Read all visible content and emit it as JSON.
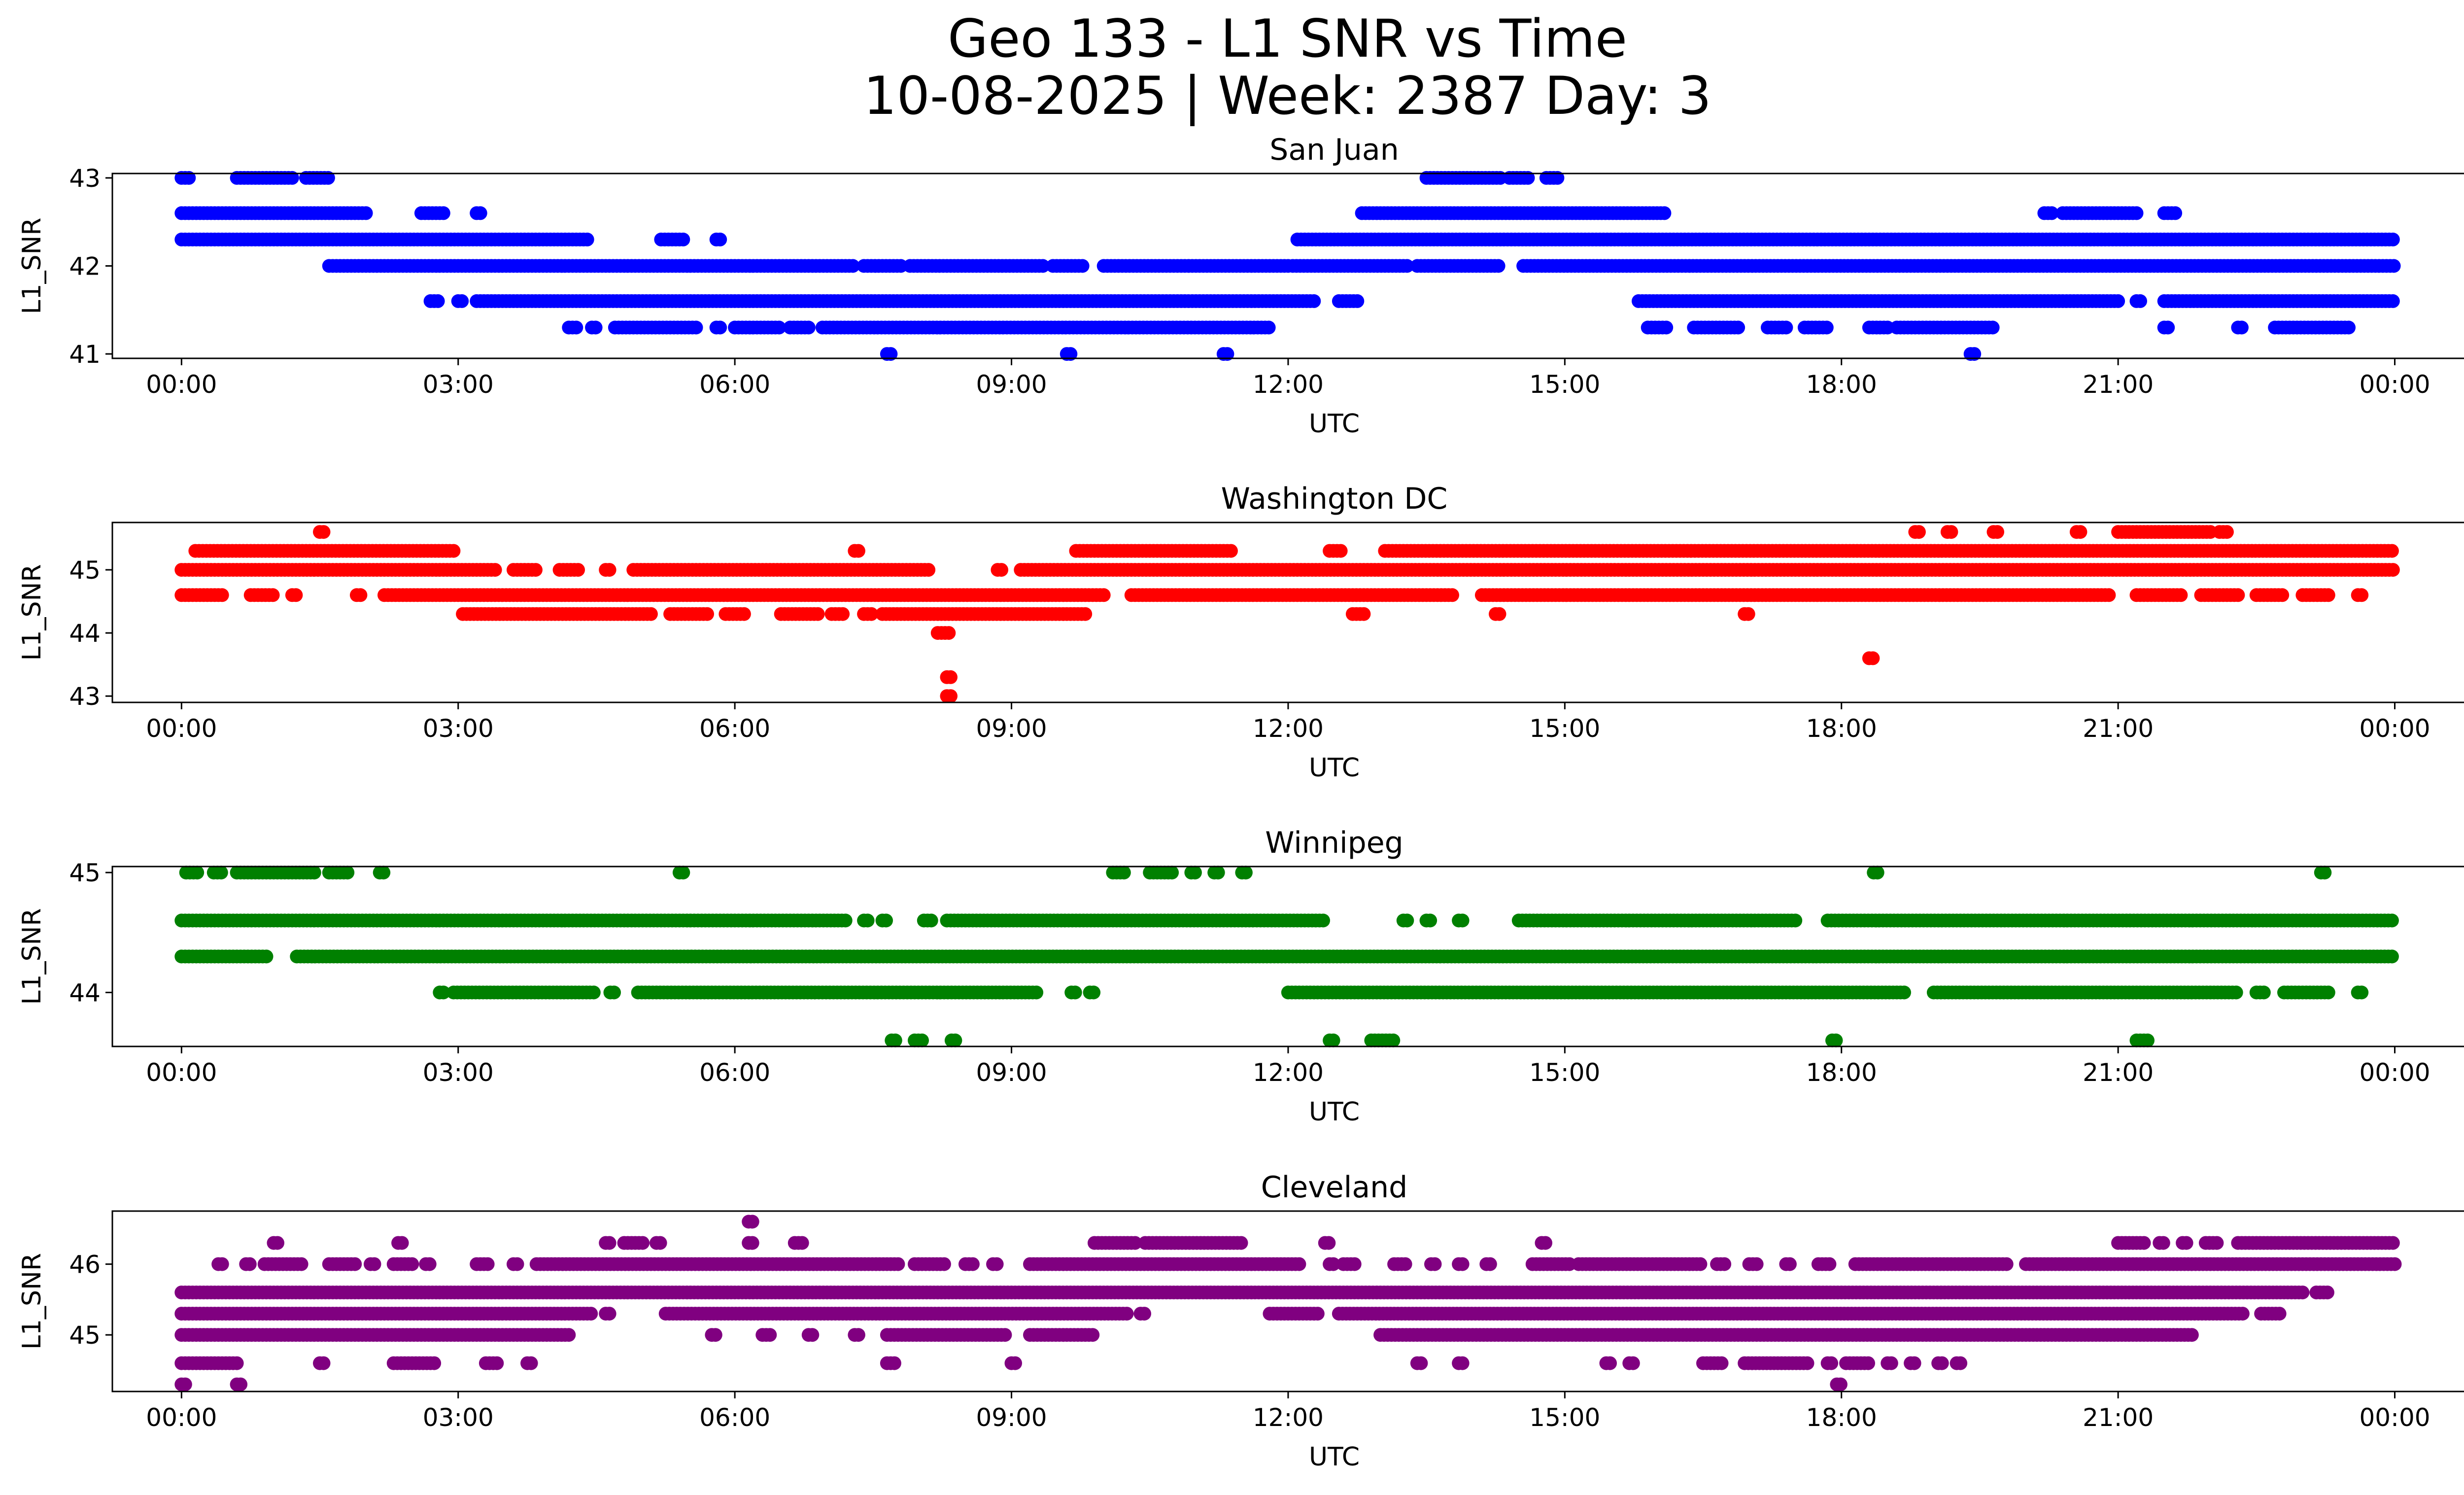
{
  "title_line1": "Geo 133 - L1 SNR vs Time",
  "title_line2": "10-08-2025 | Week: 2387 Day: 3",
  "chart_data": [
    {
      "type": "scatter",
      "title": "San Juan",
      "xlabel": "UTC",
      "ylabel": "L1_SNR",
      "color": "#0000ff",
      "xlim_hours": [
        -0.75,
        25.75
      ],
      "ylim": [
        40.95,
        43.05
      ],
      "xticks": [
        "00:00",
        "03:00",
        "06:00",
        "09:00",
        "12:00",
        "15:00",
        "18:00",
        "21:00",
        "00:00"
      ],
      "yticks": [
        "41",
        "42",
        "43"
      ],
      "ytick_values": [
        41,
        42,
        43
      ],
      "bands": [
        {
          "y": 43.0,
          "ranges": [
            [
              0.0,
              0.1
            ],
            [
              0.6,
              1.2
            ],
            [
              1.35,
              1.6
            ],
            [
              13.5,
              14.3
            ],
            [
              14.4,
              14.6
            ],
            [
              14.8,
              14.95
            ]
          ]
        },
        {
          "y": 42.6,
          "ranges": [
            [
              0.0,
              2.0
            ],
            [
              2.6,
              2.85
            ],
            [
              3.2,
              3.25
            ],
            [
              12.8,
              16.1
            ],
            [
              20.2,
              20.3
            ],
            [
              20.4,
              21.2
            ],
            [
              21.5,
              21.65
            ]
          ]
        },
        {
          "y": 42.3,
          "ranges": [
            [
              0.0,
              4.4
            ],
            [
              5.2,
              5.45
            ],
            [
              5.8,
              5.85
            ],
            [
              12.1,
              24.0
            ]
          ]
        },
        {
          "y": 42.0,
          "ranges": [
            [
              1.6,
              7.3
            ],
            [
              7.4,
              7.8
            ],
            [
              7.9,
              9.35
            ],
            [
              9.45,
              9.8
            ],
            [
              10.0,
              12.0
            ],
            [
              12.05,
              13.3
            ],
            [
              13.4,
              14.3
            ],
            [
              14.55,
              24.0
            ]
          ]
        },
        {
          "y": 41.6,
          "ranges": [
            [
              2.7,
              2.8
            ],
            [
              3.0,
              3.05
            ],
            [
              3.2,
              12.3
            ],
            [
              12.55,
              12.75
            ],
            [
              15.8,
              21.0
            ],
            [
              21.2,
              21.25
            ],
            [
              21.5,
              24.0
            ]
          ]
        },
        {
          "y": 41.3,
          "ranges": [
            [
              4.2,
              4.3
            ],
            [
              4.45,
              4.5
            ],
            [
              4.7,
              5.6
            ],
            [
              5.8,
              5.85
            ],
            [
              6.0,
              6.5
            ],
            [
              6.6,
              6.8
            ],
            [
              6.95,
              11.8
            ],
            [
              15.9,
              16.1
            ],
            [
              16.4,
              16.9
            ],
            [
              17.2,
              17.4
            ],
            [
              17.6,
              17.85
            ],
            [
              18.3,
              18.5
            ],
            [
              18.6,
              19.65
            ],
            [
              21.5,
              21.55
            ],
            [
              22.3,
              22.35
            ],
            [
              22.7,
              23.5
            ]
          ]
        },
        {
          "y": 41.0,
          "ranges": [
            [
              7.65,
              7.7
            ],
            [
              9.6,
              9.65
            ],
            [
              11.3,
              11.35
            ],
            [
              19.4,
              19.45
            ]
          ]
        }
      ]
    },
    {
      "type": "scatter",
      "title": "Washington DC",
      "xlabel": "UTC",
      "ylabel": "L1_SNR",
      "color": "#ff0000",
      "xlim_hours": [
        -0.75,
        25.75
      ],
      "ylim": [
        42.9,
        45.75
      ],
      "xticks": [
        "00:00",
        "03:00",
        "06:00",
        "09:00",
        "12:00",
        "15:00",
        "18:00",
        "21:00",
        "00:00"
      ],
      "yticks": [
        "43",
        "44",
        "45"
      ],
      "ytick_values": [
        43,
        44,
        45
      ],
      "bands": [
        {
          "y": 45.6,
          "ranges": [
            [
              1.5,
              1.55
            ],
            [
              18.8,
              18.85
            ],
            [
              19.15,
              19.2
            ],
            [
              19.65,
              19.7
            ],
            [
              20.55,
              20.6
            ],
            [
              21.0,
              22.0
            ],
            [
              22.1,
              22.2
            ]
          ]
        },
        {
          "y": 45.3,
          "ranges": [
            [
              0.15,
              2.95
            ],
            [
              7.3,
              7.35
            ],
            [
              9.7,
              11.4
            ],
            [
              12.45,
              12.6
            ],
            [
              13.05,
              24.0
            ]
          ]
        },
        {
          "y": 45.0,
          "ranges": [
            [
              0.0,
              3.4
            ],
            [
              3.6,
              3.85
            ],
            [
              4.1,
              4.3
            ],
            [
              4.6,
              4.65
            ],
            [
              4.9,
              8.1
            ],
            [
              8.85,
              8.9
            ],
            [
              9.1,
              24.0
            ]
          ]
        },
        {
          "y": 44.6,
          "ranges": [
            [
              0.0,
              0.45
            ],
            [
              0.75,
              1.0
            ],
            [
              1.2,
              1.25
            ],
            [
              1.9,
              1.95
            ],
            [
              2.2,
              10.0
            ],
            [
              10.3,
              13.8
            ],
            [
              14.1,
              20.9
            ],
            [
              21.2,
              21.7
            ],
            [
              21.9,
              22.3
            ],
            [
              22.5,
              22.8
            ],
            [
              23.0,
              23.3
            ],
            [
              23.6,
              23.65
            ]
          ]
        },
        {
          "y": 44.3,
          "ranges": [
            [
              3.05,
              5.1
            ],
            [
              5.3,
              5.7
            ],
            [
              5.9,
              6.1
            ],
            [
              6.5,
              6.9
            ],
            [
              7.05,
              7.2
            ],
            [
              7.4,
              7.5
            ],
            [
              7.6,
              9.8
            ],
            [
              12.7,
              12.85
            ],
            [
              14.25,
              14.3
            ],
            [
              16.95,
              17.0
            ]
          ]
        },
        {
          "y": 44.0,
          "ranges": [
            [
              8.2,
              8.35
            ]
          ]
        },
        {
          "y": 43.6,
          "ranges": [
            [
              18.3,
              18.35
            ]
          ]
        },
        {
          "y": 43.3,
          "ranges": [
            [
              8.3,
              8.35
            ]
          ]
        },
        {
          "y": 43.0,
          "ranges": [
            [
              8.3,
              8.35
            ]
          ]
        }
      ]
    },
    {
      "type": "scatter",
      "title": "Winnipeg",
      "xlabel": "UTC",
      "ylabel": "L1_SNR",
      "color": "#008000",
      "xlim_hours": [
        -0.75,
        25.75
      ],
      "ylim": [
        43.55,
        45.05
      ],
      "xticks": [
        "00:00",
        "03:00",
        "06:00",
        "09:00",
        "12:00",
        "15:00",
        "18:00",
        "21:00",
        "00:00"
      ],
      "yticks": [
        "44",
        "45"
      ],
      "ytick_values": [
        44,
        45
      ],
      "bands": [
        {
          "y": 45.0,
          "ranges": [
            [
              0.05,
              0.2
            ],
            [
              0.35,
              0.45
            ],
            [
              0.6,
              1.45
            ],
            [
              1.6,
              1.8
            ],
            [
              2.15,
              2.2
            ],
            [
              5.4,
              5.45
            ],
            [
              10.1,
              10.25
            ],
            [
              10.5,
              10.75
            ],
            [
              10.95,
              11.0
            ],
            [
              11.2,
              11.25
            ],
            [
              11.5,
              11.55
            ],
            [
              18.35,
              18.4
            ],
            [
              23.2,
              23.25
            ]
          ]
        },
        {
          "y": 44.6,
          "ranges": [
            [
              0.0,
              7.2
            ],
            [
              7.4,
              7.45
            ],
            [
              7.6,
              7.65
            ],
            [
              8.05,
              8.15
            ],
            [
              8.3,
              12.4
            ],
            [
              13.25,
              13.3
            ],
            [
              13.5,
              13.55
            ],
            [
              13.85,
              13.9
            ],
            [
              14.5,
              17.5
            ],
            [
              17.85,
              24.0
            ]
          ]
        },
        {
          "y": 44.3,
          "ranges": [
            [
              0.0,
              0.95
            ],
            [
              1.25,
              24.0
            ]
          ]
        },
        {
          "y": 44.0,
          "ranges": [
            [
              2.8,
              2.85
            ],
            [
              2.95,
              4.5
            ],
            [
              4.65,
              4.7
            ],
            [
              4.95,
              9.3
            ],
            [
              9.65,
              9.7
            ],
            [
              9.85,
              9.9
            ],
            [
              12.0,
              18.7
            ],
            [
              19.0,
              22.3
            ],
            [
              22.5,
              22.6
            ],
            [
              22.8,
              23.3
            ],
            [
              23.6,
              23.65
            ]
          ]
        },
        {
          "y": 43.6,
          "ranges": [
            [
              7.7,
              7.75
            ],
            [
              7.95,
              8.05
            ],
            [
              8.35,
              8.4
            ],
            [
              12.45,
              12.5
            ],
            [
              12.9,
              13.15
            ],
            [
              17.9,
              17.95
            ],
            [
              21.2,
              21.35
            ]
          ]
        }
      ]
    },
    {
      "type": "scatter",
      "title": "Cleveland",
      "xlabel": "UTC",
      "ylabel": "L1_SNR",
      "color": "#800080",
      "xlim_hours": [
        -0.75,
        25.75
      ],
      "ylim": [
        44.2,
        46.75
      ],
      "xticks": [
        "00:00",
        "03:00",
        "06:00",
        "09:00",
        "12:00",
        "15:00",
        "18:00",
        "21:00",
        "00:00"
      ],
      "yticks": [
        "45",
        "46"
      ],
      "ytick_values": [
        45,
        46
      ],
      "bands": [
        {
          "y": 46.6,
          "ranges": [
            [
              6.15,
              6.2
            ]
          ]
        },
        {
          "y": 46.3,
          "ranges": [
            [
              1.0,
              1.05
            ],
            [
              2.35,
              2.4
            ],
            [
              4.6,
              4.65
            ],
            [
              4.8,
              5.0
            ],
            [
              5.15,
              5.2
            ],
            [
              6.15,
              6.2
            ],
            [
              6.65,
              6.75
            ],
            [
              9.9,
              10.35
            ],
            [
              10.45,
              11.5
            ],
            [
              12.4,
              12.45
            ],
            [
              14.75,
              14.8
            ],
            [
              21.0,
              21.3
            ],
            [
              21.45,
              21.5
            ],
            [
              21.7,
              21.75
            ],
            [
              21.95,
              22.1
            ],
            [
              22.3,
              24.0
            ]
          ]
        },
        {
          "y": 46.0,
          "ranges": [
            [
              0.4,
              0.45
            ],
            [
              0.7,
              0.75
            ],
            [
              0.9,
              1.3
            ],
            [
              1.6,
              1.9
            ],
            [
              2.05,
              2.1
            ],
            [
              2.3,
              2.5
            ],
            [
              2.65,
              2.7
            ],
            [
              3.2,
              3.35
            ],
            [
              3.6,
              3.65
            ],
            [
              3.85,
              7.8
            ],
            [
              7.95,
              8.3
            ],
            [
              8.5,
              8.6
            ],
            [
              8.8,
              8.85
            ],
            [
              9.2,
              12.15
            ],
            [
              12.45,
              12.5
            ],
            [
              12.6,
              12.75
            ],
            [
              13.15,
              13.3
            ],
            [
              13.55,
              13.6
            ],
            [
              13.85,
              13.9
            ],
            [
              14.15,
              14.2
            ],
            [
              14.65,
              15.05
            ],
            [
              15.15,
              16.5
            ],
            [
              16.65,
              16.75
            ],
            [
              17.0,
              17.1
            ],
            [
              17.4,
              17.45
            ],
            [
              17.75,
              17.9
            ],
            [
              18.15,
              19.8
            ],
            [
              20.0,
              24.0
            ]
          ]
        },
        {
          "y": 45.6,
          "ranges": [
            [
              0.0,
              23.0
            ],
            [
              23.15,
              23.3
            ]
          ]
        },
        {
          "y": 45.3,
          "ranges": [
            [
              0.0,
              4.45
            ],
            [
              4.6,
              4.65
            ],
            [
              5.25,
              10.25
            ],
            [
              10.4,
              10.45
            ],
            [
              11.8,
              12.35
            ],
            [
              12.55,
              22.35
            ],
            [
              22.55,
              22.75
            ]
          ]
        },
        {
          "y": 45.0,
          "ranges": [
            [
              0.0,
              4.2
            ],
            [
              5.75,
              5.8
            ],
            [
              6.3,
              6.4
            ],
            [
              6.8,
              6.85
            ],
            [
              7.3,
              7.35
            ],
            [
              7.65,
              8.95
            ],
            [
              9.2,
              9.9
            ],
            [
              13.0,
              21.8
            ]
          ]
        },
        {
          "y": 44.6,
          "ranges": [
            [
              0.0,
              0.6
            ],
            [
              1.5,
              1.55
            ],
            [
              2.3,
              2.75
            ],
            [
              3.3,
              3.45
            ],
            [
              3.75,
              3.8
            ],
            [
              7.65,
              7.75
            ],
            [
              9.0,
              9.05
            ],
            [
              13.4,
              13.45
            ],
            [
              13.85,
              13.9
            ],
            [
              15.45,
              15.5
            ],
            [
              15.7,
              15.75
            ],
            [
              16.5,
              16.7
            ],
            [
              16.95,
              17.65
            ],
            [
              17.85,
              17.9
            ],
            [
              18.05,
              18.3
            ],
            [
              18.5,
              18.55
            ],
            [
              18.75,
              18.8
            ],
            [
              19.05,
              19.1
            ],
            [
              19.25,
              19.3
            ]
          ]
        },
        {
          "y": 44.3,
          "ranges": [
            [
              0.0,
              0.05
            ],
            [
              0.6,
              0.65
            ],
            [
              17.95,
              18.0
            ]
          ]
        }
      ]
    }
  ]
}
